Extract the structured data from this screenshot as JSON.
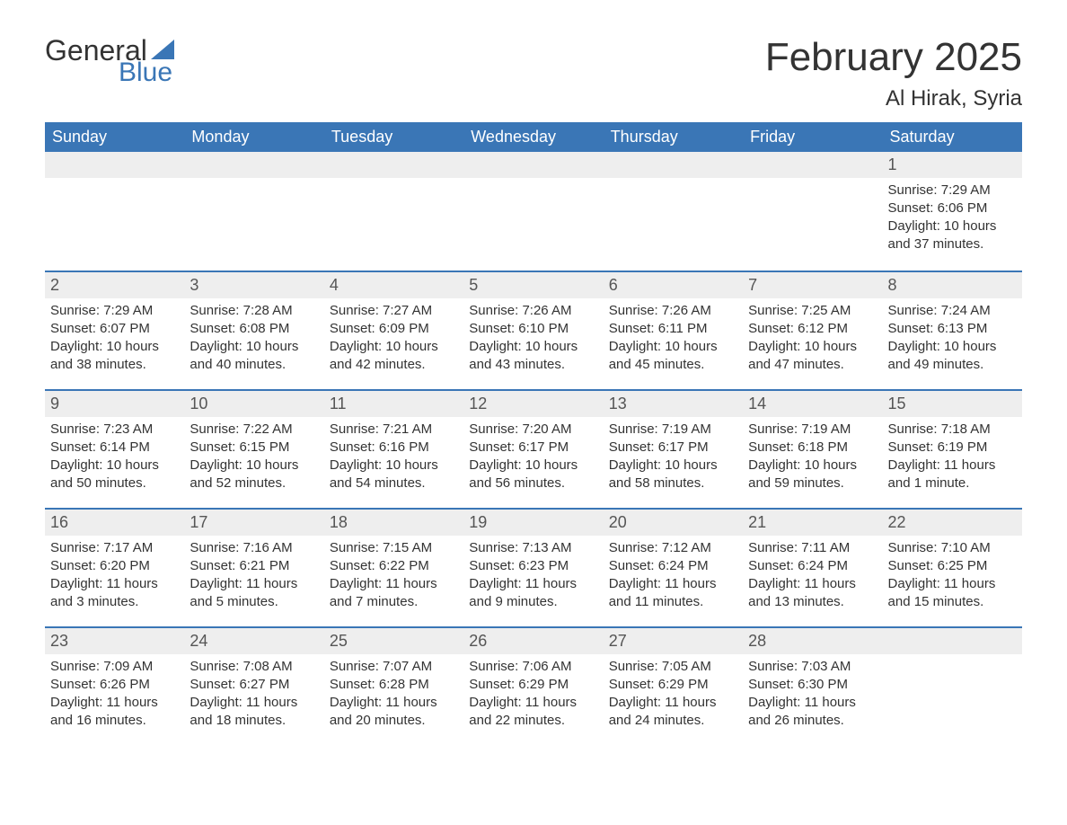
{
  "logo": {
    "word1": "General",
    "word2": "Blue",
    "sail_color": "#3a76b6"
  },
  "title": "February 2025",
  "location": "Al Hirak, Syria",
  "colors": {
    "header_bg": "#3a76b6",
    "header_text": "#ffffff",
    "daynum_bg": "#eeeeee",
    "week_border": "#3a76b6",
    "text": "#333333",
    "background": "#ffffff"
  },
  "dow": [
    "Sunday",
    "Monday",
    "Tuesday",
    "Wednesday",
    "Thursday",
    "Friday",
    "Saturday"
  ],
  "weeks": [
    [
      null,
      null,
      null,
      null,
      null,
      null,
      {
        "n": "1",
        "sunrise": "Sunrise: 7:29 AM",
        "sunset": "Sunset: 6:06 PM",
        "daylight": "Daylight: 10 hours and 37 minutes."
      }
    ],
    [
      {
        "n": "2",
        "sunrise": "Sunrise: 7:29 AM",
        "sunset": "Sunset: 6:07 PM",
        "daylight": "Daylight: 10 hours and 38 minutes."
      },
      {
        "n": "3",
        "sunrise": "Sunrise: 7:28 AM",
        "sunset": "Sunset: 6:08 PM",
        "daylight": "Daylight: 10 hours and 40 minutes."
      },
      {
        "n": "4",
        "sunrise": "Sunrise: 7:27 AM",
        "sunset": "Sunset: 6:09 PM",
        "daylight": "Daylight: 10 hours and 42 minutes."
      },
      {
        "n": "5",
        "sunrise": "Sunrise: 7:26 AM",
        "sunset": "Sunset: 6:10 PM",
        "daylight": "Daylight: 10 hours and 43 minutes."
      },
      {
        "n": "6",
        "sunrise": "Sunrise: 7:26 AM",
        "sunset": "Sunset: 6:11 PM",
        "daylight": "Daylight: 10 hours and 45 minutes."
      },
      {
        "n": "7",
        "sunrise": "Sunrise: 7:25 AM",
        "sunset": "Sunset: 6:12 PM",
        "daylight": "Daylight: 10 hours and 47 minutes."
      },
      {
        "n": "8",
        "sunrise": "Sunrise: 7:24 AM",
        "sunset": "Sunset: 6:13 PM",
        "daylight": "Daylight: 10 hours and 49 minutes."
      }
    ],
    [
      {
        "n": "9",
        "sunrise": "Sunrise: 7:23 AM",
        "sunset": "Sunset: 6:14 PM",
        "daylight": "Daylight: 10 hours and 50 minutes."
      },
      {
        "n": "10",
        "sunrise": "Sunrise: 7:22 AM",
        "sunset": "Sunset: 6:15 PM",
        "daylight": "Daylight: 10 hours and 52 minutes."
      },
      {
        "n": "11",
        "sunrise": "Sunrise: 7:21 AM",
        "sunset": "Sunset: 6:16 PM",
        "daylight": "Daylight: 10 hours and 54 minutes."
      },
      {
        "n": "12",
        "sunrise": "Sunrise: 7:20 AM",
        "sunset": "Sunset: 6:17 PM",
        "daylight": "Daylight: 10 hours and 56 minutes."
      },
      {
        "n": "13",
        "sunrise": "Sunrise: 7:19 AM",
        "sunset": "Sunset: 6:17 PM",
        "daylight": "Daylight: 10 hours and 58 minutes."
      },
      {
        "n": "14",
        "sunrise": "Sunrise: 7:19 AM",
        "sunset": "Sunset: 6:18 PM",
        "daylight": "Daylight: 10 hours and 59 minutes."
      },
      {
        "n": "15",
        "sunrise": "Sunrise: 7:18 AM",
        "sunset": "Sunset: 6:19 PM",
        "daylight": "Daylight: 11 hours and 1 minute."
      }
    ],
    [
      {
        "n": "16",
        "sunrise": "Sunrise: 7:17 AM",
        "sunset": "Sunset: 6:20 PM",
        "daylight": "Daylight: 11 hours and 3 minutes."
      },
      {
        "n": "17",
        "sunrise": "Sunrise: 7:16 AM",
        "sunset": "Sunset: 6:21 PM",
        "daylight": "Daylight: 11 hours and 5 minutes."
      },
      {
        "n": "18",
        "sunrise": "Sunrise: 7:15 AM",
        "sunset": "Sunset: 6:22 PM",
        "daylight": "Daylight: 11 hours and 7 minutes."
      },
      {
        "n": "19",
        "sunrise": "Sunrise: 7:13 AM",
        "sunset": "Sunset: 6:23 PM",
        "daylight": "Daylight: 11 hours and 9 minutes."
      },
      {
        "n": "20",
        "sunrise": "Sunrise: 7:12 AM",
        "sunset": "Sunset: 6:24 PM",
        "daylight": "Daylight: 11 hours and 11 minutes."
      },
      {
        "n": "21",
        "sunrise": "Sunrise: 7:11 AM",
        "sunset": "Sunset: 6:24 PM",
        "daylight": "Daylight: 11 hours and 13 minutes."
      },
      {
        "n": "22",
        "sunrise": "Sunrise: 7:10 AM",
        "sunset": "Sunset: 6:25 PM",
        "daylight": "Daylight: 11 hours and 15 minutes."
      }
    ],
    [
      {
        "n": "23",
        "sunrise": "Sunrise: 7:09 AM",
        "sunset": "Sunset: 6:26 PM",
        "daylight": "Daylight: 11 hours and 16 minutes."
      },
      {
        "n": "24",
        "sunrise": "Sunrise: 7:08 AM",
        "sunset": "Sunset: 6:27 PM",
        "daylight": "Daylight: 11 hours and 18 minutes."
      },
      {
        "n": "25",
        "sunrise": "Sunrise: 7:07 AM",
        "sunset": "Sunset: 6:28 PM",
        "daylight": "Daylight: 11 hours and 20 minutes."
      },
      {
        "n": "26",
        "sunrise": "Sunrise: 7:06 AM",
        "sunset": "Sunset: 6:29 PM",
        "daylight": "Daylight: 11 hours and 22 minutes."
      },
      {
        "n": "27",
        "sunrise": "Sunrise: 7:05 AM",
        "sunset": "Sunset: 6:29 PM",
        "daylight": "Daylight: 11 hours and 24 minutes."
      },
      {
        "n": "28",
        "sunrise": "Sunrise: 7:03 AM",
        "sunset": "Sunset: 6:30 PM",
        "daylight": "Daylight: 11 hours and 26 minutes."
      },
      null
    ]
  ]
}
